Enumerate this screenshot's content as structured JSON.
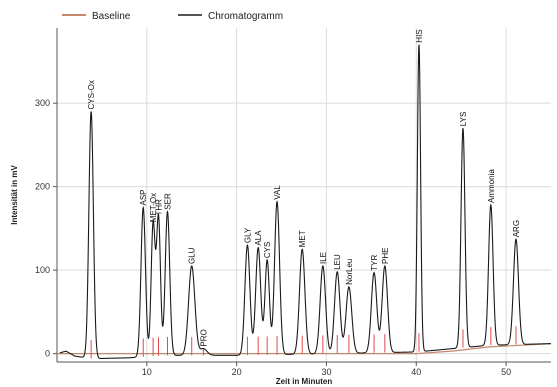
{
  "chart_data": {
    "type": "line",
    "title": "",
    "xlabel": "Zeit in Minuten",
    "ylabel": "Intensität in mV",
    "xlim": [
      0,
      55
    ],
    "ylim": [
      -10,
      390
    ],
    "xticks": [
      10,
      20,
      30,
      40,
      50
    ],
    "yticks": [
      0,
      100,
      200,
      300
    ],
    "grid": true,
    "legend_position": "top-left",
    "series": [
      {
        "name": "Baseline",
        "color": "#c08a6a",
        "values": [
          [
            0,
            0
          ],
          [
            10,
            0
          ],
          [
            20,
            0
          ],
          [
            30,
            0
          ],
          [
            40,
            0
          ],
          [
            44,
            3
          ],
          [
            48,
            8
          ],
          [
            55,
            12
          ]
        ]
      },
      {
        "name": "Chromatogramm",
        "color": "#1a1a1a",
        "baseline": [
          [
            0,
            0
          ],
          [
            1,
            3
          ],
          [
            2,
            -3
          ],
          [
            4,
            -6
          ],
          [
            8,
            -5
          ],
          [
            12,
            -2
          ],
          [
            20,
            -2
          ],
          [
            30,
            0
          ],
          [
            40,
            2
          ],
          [
            44,
            6
          ],
          [
            48,
            10
          ],
          [
            55,
            12
          ]
        ],
        "peaks": [
          {
            "label": "CYS-Ox",
            "x": 3.8,
            "y": 290,
            "width": 0.25
          },
          {
            "label": "ASP",
            "x": 9.6,
            "y": 175,
            "width": 0.25
          },
          {
            "label": "MET-Ox",
            "x": 10.7,
            "y": 155,
            "width": 0.22
          },
          {
            "label": "THR",
            "x": 11.3,
            "y": 163,
            "width": 0.22
          },
          {
            "label": "SER",
            "x": 12.3,
            "y": 170,
            "width": 0.25
          },
          {
            "label": "GLU",
            "x": 15.0,
            "y": 105,
            "width": 0.35
          },
          {
            "label": "PRO",
            "x": 16.3,
            "y": 6,
            "width": 0.4
          },
          {
            "label": "GLY",
            "x": 21.2,
            "y": 130,
            "width": 0.28
          },
          {
            "label": "ALA",
            "x": 22.4,
            "y": 127,
            "width": 0.28
          },
          {
            "label": "CYS",
            "x": 23.4,
            "y": 112,
            "width": 0.25
          },
          {
            "label": "VAL",
            "x": 24.5,
            "y": 182,
            "width": 0.28
          },
          {
            "label": "MET",
            "x": 27.3,
            "y": 125,
            "width": 0.3
          },
          {
            "label": "ILE",
            "x": 29.6,
            "y": 105,
            "width": 0.3
          },
          {
            "label": "LEU",
            "x": 31.2,
            "y": 98,
            "width": 0.3
          },
          {
            "label": "NorLeu",
            "x": 32.5,
            "y": 80,
            "width": 0.32
          },
          {
            "label": "TYR",
            "x": 35.3,
            "y": 97,
            "width": 0.3
          },
          {
            "label": "PHE",
            "x": 36.5,
            "y": 105,
            "width": 0.3
          },
          {
            "label": "HIS",
            "x": 40.3,
            "y": 370,
            "width": 0.18
          },
          {
            "label": "LYS",
            "x": 45.2,
            "y": 270,
            "width": 0.22
          },
          {
            "label": "Ammonia",
            "x": 48.3,
            "y": 178,
            "width": 0.25
          },
          {
            "label": "ARG",
            "x": 51.1,
            "y": 137,
            "width": 0.28
          }
        ]
      }
    ]
  },
  "colors": {
    "baseline": "#c08a6a",
    "chromatogram": "#1a1a1a",
    "peak_marker": "#e04a4a",
    "grid": "#dcdcdc",
    "axis": "#555555"
  }
}
